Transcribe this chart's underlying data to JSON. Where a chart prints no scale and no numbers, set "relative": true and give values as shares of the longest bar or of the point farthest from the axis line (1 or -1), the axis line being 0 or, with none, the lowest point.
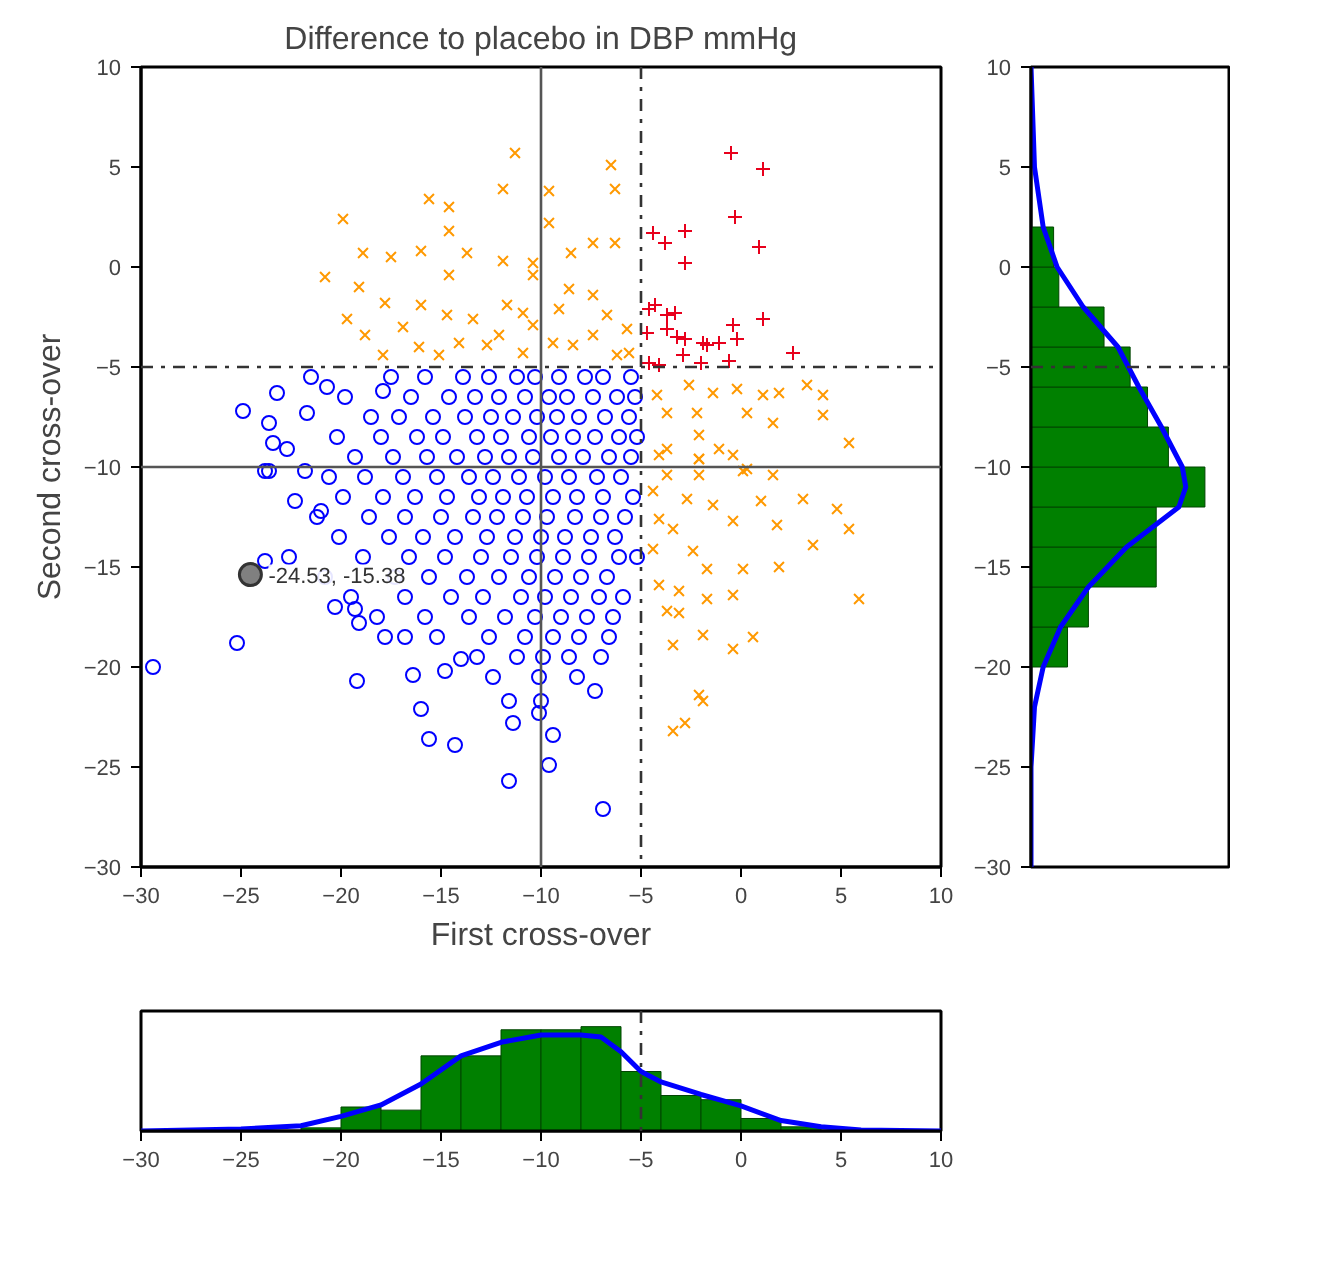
{
  "chart_data": [
    {
      "type": "scatter",
      "title": "Difference to placebo in DBP mmHg",
      "xlabel": "First cross-over",
      "ylabel": "Second cross-over",
      "xlim": [
        -30,
        10
      ],
      "ylim": [
        -30,
        10
      ],
      "xticks": [
        -30,
        -25,
        -20,
        -15,
        -10,
        -5,
        0,
        5,
        10
      ],
      "yticks": [
        -30,
        -25,
        -20,
        -15,
        -10,
        -5,
        0,
        5,
        10
      ],
      "grid": false,
      "series": [
        {
          "color": "#0000ff",
          "marker": "circle",
          "x": [
            -29.4,
            -25.2,
            -19.2,
            -16,
            -15.6,
            -14.3,
            -11.6,
            -9.6,
            -9.4,
            -6.9,
            -11.6,
            -11.4,
            -10.1,
            -10,
            -7.3,
            -16.4,
            -14.8,
            -14,
            -17.8,
            -16.8,
            -22.3,
            -21,
            -23.6,
            -21.8,
            -23.8,
            -20.3,
            -19.3,
            -19.1,
            -24.9,
            -23.6,
            -23.2,
            -21.7,
            -21.5,
            -20.7,
            -23.4,
            -22.7,
            -23.8,
            -17.9,
            -17.5,
            -15.8,
            -13.9,
            -12.6,
            -11.2,
            -10.3,
            -9.1,
            -7.8,
            -6.9,
            -5.5,
            -19.8,
            -16.5,
            -14.6,
            -13.3,
            -12.1,
            -10.8,
            -9.6,
            -8.7,
            -7.4,
            -6.2,
            -5.3,
            -18.5,
            -17.1,
            -15.4,
            -13.8,
            -12.5,
            -11.4,
            -10.2,
            -9.2,
            -8.1,
            -6.8,
            -5.6,
            -20.2,
            -18,
            -16.2,
            -14.9,
            -13.2,
            -12,
            -10.6,
            -9.5,
            -8.4,
            -7.3,
            -6.1,
            -5.2,
            -19.3,
            -17.4,
            -15.7,
            -14.2,
            -12.8,
            -11.6,
            -10.4,
            -9.1,
            -7.9,
            -6.6,
            -5.5,
            -20.6,
            -18.8,
            -16.9,
            -15.2,
            -13.6,
            -12.4,
            -11.1,
            -9.8,
            -8.6,
            -7.2,
            -6,
            -19.9,
            -17.9,
            -16.3,
            -14.7,
            -13.1,
            -11.9,
            -10.7,
            -9.4,
            -8.2,
            -6.9,
            -5.4,
            -21.2,
            -18.6,
            -16.8,
            -15,
            -13.4,
            -12.2,
            -10.9,
            -9.7,
            -8.3,
            -7,
            -5.8,
            -20.1,
            -17.6,
            -15.9,
            -14.3,
            -12.7,
            -11.3,
            -10,
            -8.8,
            -7.5,
            -6.3,
            -22.6,
            -18.9,
            -16.6,
            -14.8,
            -13,
            -11.5,
            -10.2,
            -8.9,
            -7.6,
            -6.1,
            -5.2,
            -20.8,
            -17.3,
            -15.6,
            -13.7,
            -12.1,
            -10.6,
            -9.3,
            -8,
            -6.7,
            -19.5,
            -16.8,
            -14.5,
            -12.9,
            -11,
            -9.8,
            -8.5,
            -7.1,
            -5.9,
            -18.2,
            -15.8,
            -13.6,
            -11.8,
            -10.3,
            -9,
            -7.7,
            -6.4,
            -15.2,
            -12.6,
            -10.8,
            -9.4,
            -8.1,
            -6.6,
            -13.2,
            -11.2,
            -9.9,
            -8.6,
            -7,
            -12.4,
            -10.1,
            -8.2
          ],
          "values": [
            -20,
            -18.8,
            -20.7,
            -22.1,
            -23.6,
            -23.9,
            -25.7,
            -24.9,
            -23.4,
            -27.1,
            -21.7,
            -22.8,
            -22.3,
            -21.7,
            -21.2,
            -20.4,
            -20.2,
            -19.6,
            -18.5,
            -18.5,
            -11.7,
            -12.2,
            -10.2,
            -10.2,
            -14.7,
            -17,
            -17.1,
            -17.8,
            -7.2,
            -7.8,
            -6.3,
            -7.3,
            -5.5,
            -6,
            -8.8,
            -9.1,
            -10.2,
            -6.2,
            -5.5,
            -5.5,
            -5.5,
            -5.5,
            -5.5,
            -5.5,
            -5.5,
            -5.5,
            -5.5,
            -5.5,
            -6.5,
            -6.5,
            -6.5,
            -6.5,
            -6.5,
            -6.5,
            -6.5,
            -6.5,
            -6.5,
            -6.5,
            -6.5,
            -7.5,
            -7.5,
            -7.5,
            -7.5,
            -7.5,
            -7.5,
            -7.5,
            -7.5,
            -7.5,
            -7.5,
            -7.5,
            -8.5,
            -8.5,
            -8.5,
            -8.5,
            -8.5,
            -8.5,
            -8.5,
            -8.5,
            -8.5,
            -8.5,
            -8.5,
            -8.5,
            -9.5,
            -9.5,
            -9.5,
            -9.5,
            -9.5,
            -9.5,
            -9.5,
            -9.5,
            -9.5,
            -9.5,
            -9.5,
            -10.5,
            -10.5,
            -10.5,
            -10.5,
            -10.5,
            -10.5,
            -10.5,
            -10.5,
            -10.5,
            -10.5,
            -10.5,
            -11.5,
            -11.5,
            -11.5,
            -11.5,
            -11.5,
            -11.5,
            -11.5,
            -11.5,
            -11.5,
            -11.5,
            -11.5,
            -12.5,
            -12.5,
            -12.5,
            -12.5,
            -12.5,
            -12.5,
            -12.5,
            -12.5,
            -12.5,
            -12.5,
            -12.5,
            -13.5,
            -13.5,
            -13.5,
            -13.5,
            -13.5,
            -13.5,
            -13.5,
            -13.5,
            -13.5,
            -13.5,
            -14.5,
            -14.5,
            -14.5,
            -14.5,
            -14.5,
            -14.5,
            -14.5,
            -14.5,
            -14.5,
            -14.5,
            -14.5,
            -15.5,
            -15.5,
            -15.5,
            -15.5,
            -15.5,
            -15.5,
            -15.5,
            -15.5,
            -15.5,
            -16.5,
            -16.5,
            -16.5,
            -16.5,
            -16.5,
            -16.5,
            -16.5,
            -16.5,
            -16.5,
            -17.5,
            -17.5,
            -17.5,
            -17.5,
            -17.5,
            -17.5,
            -17.5,
            -17.5,
            -18.5,
            -18.5,
            -18.5,
            -18.5,
            -18.5,
            -18.5,
            -19.5,
            -19.5,
            -19.5,
            -19.5,
            -19.5,
            -20.5,
            -20.5,
            -20.5
          ]
        },
        {
          "color": "#ff9900",
          "marker": "cross",
          "x": [
            -11.3,
            -6.5,
            -11.9,
            -9.6,
            -6.3,
            -15.6,
            -14.6,
            -19.9,
            -14.6,
            -9.6,
            -18.9,
            -17.5,
            -16,
            -13.7,
            -11.9,
            -8.5,
            -7.4,
            -6.3,
            -20.8,
            -19.1,
            -14.6,
            -10.4,
            -17.8,
            -16,
            -8.6,
            -19.7,
            -18.8,
            -16.9,
            -14.7,
            -13.4,
            -11.7,
            -10.9,
            -10.4,
            -9.1,
            -7.4,
            -6.7,
            -5.7,
            -17.9,
            -16.1,
            -15.1,
            -14.1,
            -12.7,
            -12.1,
            -10.9,
            -9.4,
            -8.4,
            -7.4,
            -6.2,
            -5.6,
            -10.4,
            -2.6,
            -1.4,
            -0.2,
            1.1,
            1.9,
            3.3,
            4.1,
            4.1,
            5.4,
            -4.2,
            -3.7,
            -2.2,
            0.3,
            1.6,
            -3.7,
            -2.1,
            -1.1,
            -2.1,
            0.3,
            -4.1,
            -2.1,
            -0.4,
            -3.7,
            -2.1,
            0.1,
            1.6,
            -4.4,
            -2.7,
            -1.4,
            1,
            3.1,
            4.8,
            5.4,
            -4.1,
            -3.4,
            -0.4,
            1.8,
            3.6,
            -4.4,
            -2.4,
            -1.7,
            0.1,
            1.9,
            -4.1,
            -3.1,
            -1.7,
            -0.4,
            5.9,
            -3.7,
            -3.1,
            -3.4,
            -1.9,
            0.6,
            -0.4,
            -2.1,
            -1.9,
            -3.4,
            -2.8
          ],
          "values": [
            5.7,
            5.1,
            3.9,
            3.8,
            3.9,
            3.4,
            3,
            2.4,
            1.8,
            2.2,
            0.7,
            0.5,
            0.8,
            0.7,
            0.3,
            0.7,
            1.2,
            1.2,
            -0.5,
            -1,
            -0.4,
            0.2,
            -1.8,
            -1.9,
            -1.1,
            -2.6,
            -3.4,
            -3,
            -2.4,
            -2.6,
            -1.9,
            -2.3,
            -2.9,
            -2.1,
            -1.4,
            -2.4,
            -3.1,
            -4.4,
            -4,
            -4.4,
            -3.8,
            -3.9,
            -3.4,
            -4.3,
            -3.8,
            -3.9,
            -3.4,
            -4.4,
            -4.3,
            -0.4,
            -5.9,
            -6.3,
            -6.1,
            -6.4,
            -6.3,
            -5.9,
            -6.4,
            -7.4,
            -8.8,
            -6.4,
            -7.3,
            -7.3,
            -7.3,
            -7.8,
            -9.1,
            -8.4,
            -9.1,
            -9.6,
            -10.1,
            -9.4,
            -9.6,
            -9.4,
            -10.4,
            -10.4,
            -10.2,
            -10.4,
            -11.2,
            -11.6,
            -11.9,
            -11.7,
            -11.6,
            -12.1,
            -13.1,
            -12.6,
            -13.1,
            -12.7,
            -12.9,
            -13.9,
            -14.1,
            -14.2,
            -15.1,
            -15.1,
            -15,
            -15.9,
            -16.2,
            -16.6,
            -16.4,
            -16.6,
            -17.2,
            -17.3,
            -18.9,
            -18.4,
            -18.5,
            -19.1,
            -21.4,
            -21.7,
            -23.2,
            -22.8
          ]
        },
        {
          "color": "#e8001c",
          "marker": "plus",
          "x": [
            -0.5,
            1.1,
            -0.3,
            0.9,
            -2.8,
            -4.4,
            -3.8,
            -2.8,
            1.1,
            2.6,
            -4.6,
            -4.3,
            -3.7,
            -3.3,
            -4.7,
            -3.7,
            -3.2,
            -2.8,
            -1.9,
            -1.7,
            -1.1,
            -0.4,
            -0.2,
            -0.6,
            -2.9,
            -2,
            -4.6,
            -4.1
          ],
          "values": [
            5.7,
            4.9,
            2.5,
            1,
            1.8,
            1.7,
            1.2,
            0.2,
            -2.6,
            -4.3,
            -2.1,
            -1.9,
            -2.4,
            -2.3,
            -3.3,
            -3.1,
            -3.5,
            -3.6,
            -3.8,
            -3.9,
            -3.8,
            -2.9,
            -3.6,
            -4.7,
            -4.4,
            -4.8,
            -4.8,
            -4.9
          ]
        }
      ],
      "annotations": [
        {
          "text": "-24.53, -15.38",
          "x": -24.53,
          "y": -15.38
        }
      ],
      "ref_lines": [
        {
          "axis": "x",
          "value": -10,
          "line_style": "solid",
          "color": "#555555"
        },
        {
          "axis": "y",
          "value": -10,
          "line_style": "solid",
          "color": "#555555"
        },
        {
          "axis": "x",
          "value": -5,
          "line_style": "dashdot",
          "color": "#333333"
        },
        {
          "axis": "y",
          "value": -5,
          "line_style": "dashdot",
          "color": "#333333"
        }
      ]
    },
    {
      "type": "histogram",
      "orientation": "horizontal",
      "relative": true,
      "ylim": [
        -30,
        10
      ],
      "yticks": [
        -30,
        -25,
        -20,
        -15,
        -10,
        -5,
        0,
        5,
        10
      ],
      "tick_labels": "y",
      "grid": false,
      "series": [
        {
          "type": "histogram",
          "color": "#008000",
          "bins": [
            -20,
            -18,
            -16,
            -14,
            -12,
            -10,
            -8,
            -6,
            -4,
            -2,
            0,
            2
          ],
          "values": [
            0.21,
            0.33,
            0.72,
            0.72,
            1.0,
            0.79,
            0.67,
            0.57,
            0.42,
            0.16,
            0.13
          ]
        },
        {
          "type": "line",
          "color": "#0000ff",
          "x": [
            -30,
            -25,
            -22,
            -20,
            -18,
            -16,
            -14,
            -12,
            -11,
            -10,
            -8,
            -6,
            -4,
            -2,
            0,
            2,
            5,
            10
          ],
          "values": [
            0,
            0,
            0.02,
            0.07,
            0.17,
            0.33,
            0.55,
            0.85,
            0.89,
            0.87,
            0.75,
            0.62,
            0.5,
            0.3,
            0.15,
            0.07,
            0.02,
            0
          ]
        }
      ],
      "ref_lines": [
        {
          "axis": "y",
          "value": -5,
          "line_style": "dashdot",
          "color": "#333333"
        }
      ]
    },
    {
      "type": "histogram",
      "relative": true,
      "xlim": [
        -30,
        10
      ],
      "xticks": [
        -30,
        -25,
        -20,
        -15,
        -10,
        -5,
        0,
        5,
        10
      ],
      "tick_labels": "x",
      "grid": false,
      "series": [
        {
          "type": "histogram",
          "color": "#008000",
          "bins": [
            -22,
            -20,
            -18,
            -16,
            -14,
            -12,
            -10,
            -8,
            -6,
            -4,
            -2,
            0,
            2,
            4
          ],
          "values": [
            0.03,
            0.23,
            0.2,
            0.72,
            0.72,
            0.97,
            0.97,
            1.0,
            0.57,
            0.34,
            0.3,
            0.12,
            0.04
          ]
        },
        {
          "type": "line",
          "color": "#0000ff",
          "x": [
            -30,
            -25,
            -22,
            -20,
            -18,
            -16,
            -14,
            -12,
            -10,
            -8,
            -7,
            -6,
            -5,
            -4,
            -2,
            0,
            2,
            4,
            6,
            10
          ],
          "values": [
            0,
            0.02,
            0.05,
            0.14,
            0.25,
            0.45,
            0.72,
            0.85,
            0.92,
            0.92,
            0.9,
            0.76,
            0.57,
            0.47,
            0.35,
            0.24,
            0.1,
            0.04,
            0.01,
            0
          ]
        }
      ],
      "ref_lines": [
        {
          "axis": "x",
          "value": -5,
          "line_style": "dashdot",
          "color": "#333333"
        }
      ]
    }
  ]
}
